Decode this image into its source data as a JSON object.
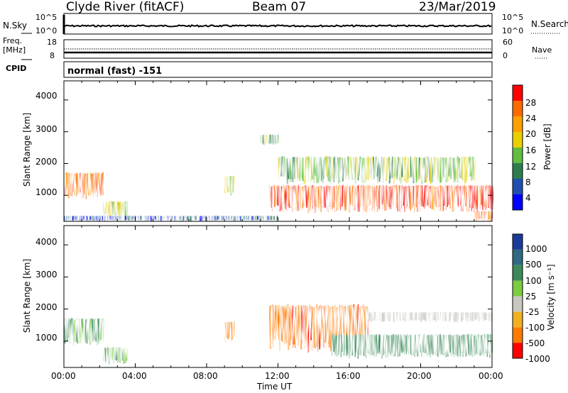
{
  "header": {
    "station": "Clyde River (fitACF)",
    "beam": "Beam 07",
    "date": "23/Mar/2019"
  },
  "nsky_panel": {
    "left_label": "N.Sky",
    "left_ticks": [
      "10^5",
      "10^0"
    ],
    "right_ticks": [
      "10^5",
      "10^0"
    ],
    "right_label": "N.Search"
  },
  "freq_panel": {
    "left_label_1": "Freq.",
    "left_label_2": "[MHz]",
    "left_ticks": [
      "18",
      "8"
    ],
    "right_ticks": [
      "60",
      "0"
    ],
    "right_label": "Nave"
  },
  "cpid_panel": {
    "label": "CPID",
    "text": "normal (fast)  -151"
  },
  "power_panel": {
    "ylabel": "Slant Range [km]",
    "yticks": [
      "4000",
      "3000",
      "2000",
      "1000"
    ],
    "colorbar_label": "Power [dB]",
    "colorbar_ticks": [
      "28",
      "24",
      "20",
      "16",
      "12",
      "8",
      "4"
    ],
    "colors": [
      "#0000ff",
      "#1f4fb0",
      "#2e7d4f",
      "#5fbf3f",
      "#e8d000",
      "#ffa000",
      "#ff6a00",
      "#ff0000"
    ]
  },
  "velocity_panel": {
    "ylabel": "Slant Range [km]",
    "yticks": [
      "4000",
      "3000",
      "2000",
      "1000"
    ],
    "colorbar_label": "Velocity [m s⁻¹]",
    "colorbar_ticks": [
      "1000",
      "500",
      "100",
      "25",
      "-25",
      "-100",
      "-500",
      "-1000"
    ],
    "colors": [
      "#1a3a9a",
      "#2e6a80",
      "#3c8a5a",
      "#7ccc40",
      "#c8c8c0",
      "#f0b020",
      "#ff7a00",
      "#ff0000"
    ]
  },
  "xaxis": {
    "ticks": [
      "00:00",
      "04:00",
      "08:00",
      "12:00",
      "16:00",
      "20:00",
      "00:00"
    ],
    "label": "Time UT"
  },
  "chart_data": [
    {
      "type": "heatmap",
      "title": "",
      "xlabel": "Time UT",
      "ylabel": "Slant Range [km]",
      "x_range_hours": [
        0,
        24
      ],
      "y_range_km": [
        180,
        4600
      ],
      "colorbar": {
        "label": "Power [dB]",
        "range": [
          0,
          32
        ],
        "ticks": [
          4,
          8,
          12,
          16,
          20,
          24,
          28
        ]
      },
      "echo_regions": [
        {
          "t": [
            0.0,
            2.2
          ],
          "range_km": [
            900,
            1700
          ],
          "power_db": 25
        },
        {
          "t": [
            2.2,
            3.5
          ],
          "range_km": [
            300,
            800
          ],
          "power_db": 18
        },
        {
          "t": [
            0.0,
            12.0
          ],
          "range_km": [
            200,
            350
          ],
          "power_db": 6
        },
        {
          "t": [
            9.0,
            9.5
          ],
          "range_km": [
            1000,
            1600
          ],
          "power_db": 16
        },
        {
          "t": [
            11.0,
            12.0
          ],
          "range_km": [
            2600,
            2900
          ],
          "power_db": 14
        },
        {
          "t": [
            11.5,
            24.0
          ],
          "range_km": [
            500,
            1300
          ],
          "power_db": 28
        },
        {
          "t": [
            12.0,
            23.0
          ],
          "range_km": [
            1400,
            2200
          ],
          "power_db": 14
        },
        {
          "t": [
            23.0,
            24.0
          ],
          "range_km": [
            200,
            500
          ],
          "power_db": 28
        }
      ]
    },
    {
      "type": "heatmap",
      "title": "",
      "xlabel": "Time UT",
      "ylabel": "Slant Range [km]",
      "x_range_hours": [
        0,
        24
      ],
      "y_range_km": [
        180,
        4600
      ],
      "colorbar": {
        "label": "Velocity [m s⁻¹]",
        "ticks": [
          1000,
          500,
          100,
          25,
          -25,
          -100,
          -500,
          -1000
        ]
      },
      "echo_regions": [
        {
          "t": [
            0.0,
            2.2
          ],
          "range_km": [
            900,
            1700
          ],
          "velocity": 100
        },
        {
          "t": [
            2.2,
            3.5
          ],
          "range_km": [
            300,
            800
          ],
          "velocity": 100
        },
        {
          "t": [
            9.0,
            9.5
          ],
          "range_km": [
            1000,
            1600
          ],
          "velocity": -300
        },
        {
          "t": [
            11.5,
            17.0
          ],
          "range_km": [
            700,
            2100
          ],
          "velocity": -400
        },
        {
          "t": [
            17.0,
            24.0
          ],
          "range_km": [
            1600,
            1900
          ],
          "velocity": 0
        },
        {
          "t": [
            15.0,
            24.0
          ],
          "range_km": [
            500,
            1200
          ],
          "velocity": 300
        }
      ]
    }
  ]
}
